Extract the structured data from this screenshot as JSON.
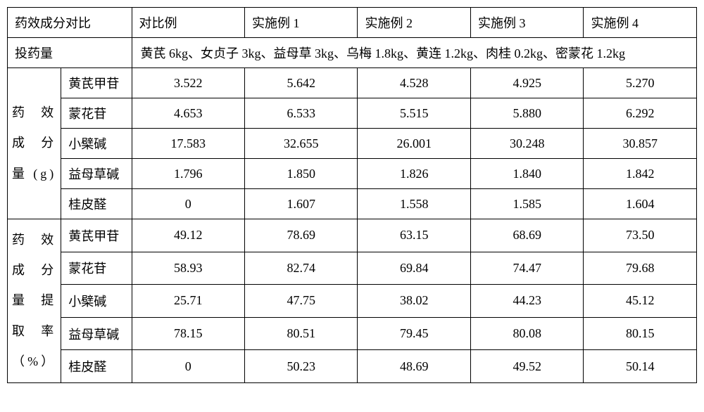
{
  "header": {
    "title": "药效成分对比",
    "columns": [
      "对比例",
      "实施例 1",
      "实施例 2",
      "实施例 3",
      "实施例 4"
    ]
  },
  "dosage": {
    "label": "投药量",
    "value": "黄芪 6kg、女贞子 3kg、益母草 3kg、乌梅 1.8kg、黄连 1.2kg、肉桂 0.2kg、密蒙花 1.2kg"
  },
  "section1": {
    "label": "药效成分量(g)",
    "rows": [
      {
        "name": "黄芪甲苷",
        "values": [
          "3.522",
          "5.642",
          "4.528",
          "4.925",
          "5.270"
        ]
      },
      {
        "name": "蒙花苷",
        "values": [
          "4.653",
          "6.533",
          "5.515",
          "5.880",
          "6.292"
        ]
      },
      {
        "name": "小檗碱",
        "values": [
          "17.583",
          "32.655",
          "26.001",
          "30.248",
          "30.857"
        ]
      },
      {
        "name": "益母草碱",
        "values": [
          "1.796",
          "1.850",
          "1.826",
          "1.840",
          "1.842"
        ]
      },
      {
        "name": "桂皮醛",
        "values": [
          "0",
          "1.607",
          "1.558",
          "1.585",
          "1.604"
        ]
      }
    ]
  },
  "section2": {
    "label": "药效成分量提取率（%）",
    "rows": [
      {
        "name": "黄芪甲苷",
        "values": [
          "49.12",
          "78.69",
          "63.15",
          "68.69",
          "73.50"
        ]
      },
      {
        "name": "蒙花苷",
        "values": [
          "58.93",
          "82.74",
          "69.84",
          "74.47",
          "79.68"
        ]
      },
      {
        "name": "小檗碱",
        "values": [
          "25.71",
          "47.75",
          "38.02",
          "44.23",
          "45.12"
        ]
      },
      {
        "name": "益母草碱",
        "values": [
          "78.15",
          "80.51",
          "79.45",
          "80.08",
          "80.15"
        ]
      },
      {
        "name": "桂皮醛",
        "values": [
          "0",
          "50.23",
          "48.69",
          "49.52",
          "50.14"
        ]
      }
    ]
  },
  "style": {
    "border_color": "#000000",
    "background": "#ffffff",
    "font_family": "KaiTi",
    "font_size": 18
  }
}
